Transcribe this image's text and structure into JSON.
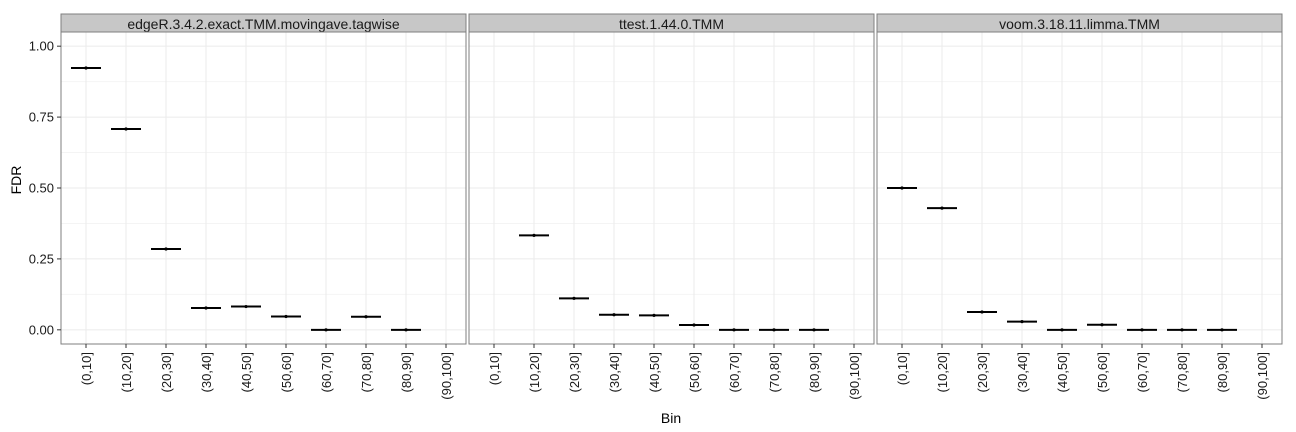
{
  "chart_data": {
    "type": "crossbar",
    "xlabel": "Bin",
    "ylabel": "FDR",
    "ylim": [
      -0.05,
      1.05
    ],
    "yticks": [
      "0.00",
      "0.25",
      "0.50",
      "0.75",
      "1.00"
    ],
    "ytick_values": [
      0,
      0.25,
      0.5,
      0.75,
      1.0
    ],
    "categories": [
      "(0,10]",
      "(10,20]",
      "(20,30]",
      "(30,40]",
      "(40,50]",
      "(50,60]",
      "(60,70]",
      "(70,80]",
      "(80,90]",
      "(90,100]"
    ],
    "grid": true,
    "panels": [
      {
        "name": "edgeR.3.4.2.exact.TMM.movingave.tagwise",
        "values": [
          0.923,
          0.708,
          0.285,
          0.077,
          0.082,
          0.047,
          0.0,
          0.046,
          0.0,
          null
        ]
      },
      {
        "name": "ttest.1.44.0.TMM",
        "values": [
          null,
          0.333,
          0.111,
          0.053,
          0.051,
          0.017,
          0.0,
          0.0,
          0.0,
          null
        ]
      },
      {
        "name": "voom.3.18.11.limma.TMM",
        "values": [
          0.5,
          0.429,
          0.063,
          0.029,
          0.0,
          0.018,
          0.0,
          0.0,
          0.0,
          null
        ]
      }
    ]
  },
  "colors": {
    "panel_border": "#7f7f7f",
    "strip_fill": "#c7c7c7",
    "grid": "#ebebeb",
    "mark": "#000000"
  }
}
